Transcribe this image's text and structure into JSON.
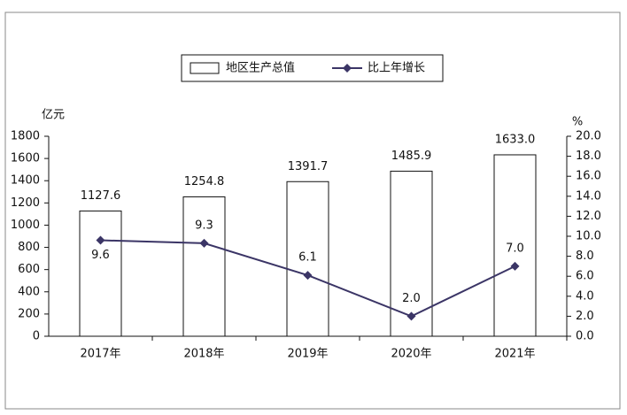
{
  "chart_data": {
    "type": "combo",
    "legend": "top",
    "y_label": "亿元",
    "y2_label": "%",
    "categories": [
      "2017年",
      "2018年",
      "2019年",
      "2020年",
      "2021年"
    ],
    "series": [
      {
        "name": "地区生产总值",
        "type": "bar",
        "color": "#ffffff",
        "edge_color": "#111111",
        "values": [
          1127.6,
          1254.8,
          1391.7,
          1485.9,
          1633.0
        ],
        "value_labels": [
          "1127.6",
          "1254.8",
          "1391.7",
          "1485.9",
          "1633.0"
        ]
      },
      {
        "name": "比上年增长",
        "type": "line",
        "axis": "y2",
        "color": "#3b3566",
        "values": [
          9.6,
          9.3,
          6.1,
          2.0,
          7.0
        ],
        "value_labels": [
          "9.6",
          "9.3",
          "6.1",
          "2.0",
          "7.0"
        ]
      }
    ],
    "ylim": [
      0,
      1800
    ],
    "yticks": [
      0,
      200,
      400,
      600,
      800,
      1000,
      1200,
      1400,
      1600,
      1800
    ],
    "y2lim": [
      0,
      20
    ],
    "y2ticks": [
      {
        "value": 0,
        "label": "0.0"
      },
      {
        "value": 2,
        "label": "2.0"
      },
      {
        "value": 4,
        "label": "4.0"
      },
      {
        "value": 6,
        "label": "6.0"
      },
      {
        "value": 8,
        "label": "8.0"
      },
      {
        "value": 10,
        "label": "10.0"
      },
      {
        "value": 12,
        "label": "12.0"
      },
      {
        "value": 14,
        "label": "14.0"
      },
      {
        "value": 16,
        "label": "16.0"
      },
      {
        "value": 18,
        "label": "18.0"
      },
      {
        "value": 20,
        "label": "20.0"
      }
    ],
    "grid": false
  }
}
